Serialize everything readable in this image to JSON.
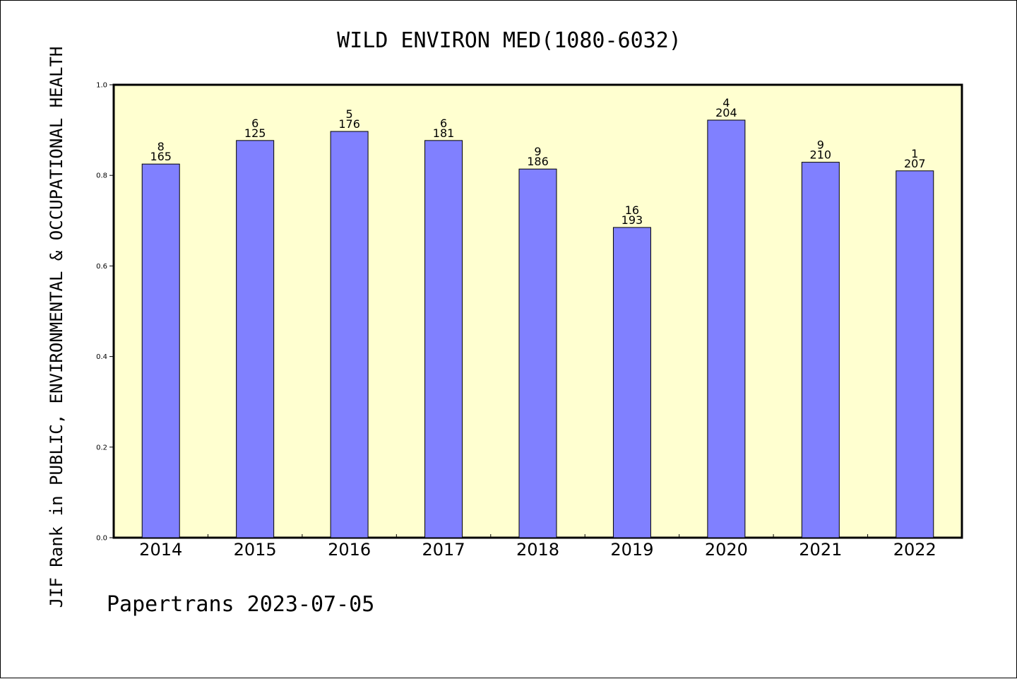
{
  "chart_data": {
    "type": "bar",
    "title": "WILD ENVIRON MED(1080-6032)",
    "xlabel": "",
    "ylabel": "JIF Rank in PUBLIC, ENVIRONMENTAL & OCCUPATIONAL HEALTH",
    "ylim": [
      0,
      1
    ],
    "yticks": [
      "0.0",
      "0.2",
      "0.4",
      "0.6",
      "0.8",
      "1.0"
    ],
    "categories": [
      "2014",
      "2015",
      "2016",
      "2017",
      "2018",
      "2019",
      "2020",
      "2021",
      "2022"
    ],
    "values": [
      0.825,
      0.877,
      0.897,
      0.877,
      0.814,
      0.685,
      0.922,
      0.829,
      0.81
    ],
    "ranks": [
      "8",
      "6",
      "5",
      "6",
      "9",
      "16",
      "4",
      "9",
      "1"
    ],
    "totals": [
      "165",
      "125",
      "176",
      "181",
      "186",
      "193",
      "204",
      "210",
      "207"
    ],
    "grid": false,
    "colors": {
      "plot_background": "#ffffd0",
      "bar_fill": "#8080ff",
      "bar_stroke": "#000000"
    }
  },
  "footer": "Papertrans 2023-07-05"
}
